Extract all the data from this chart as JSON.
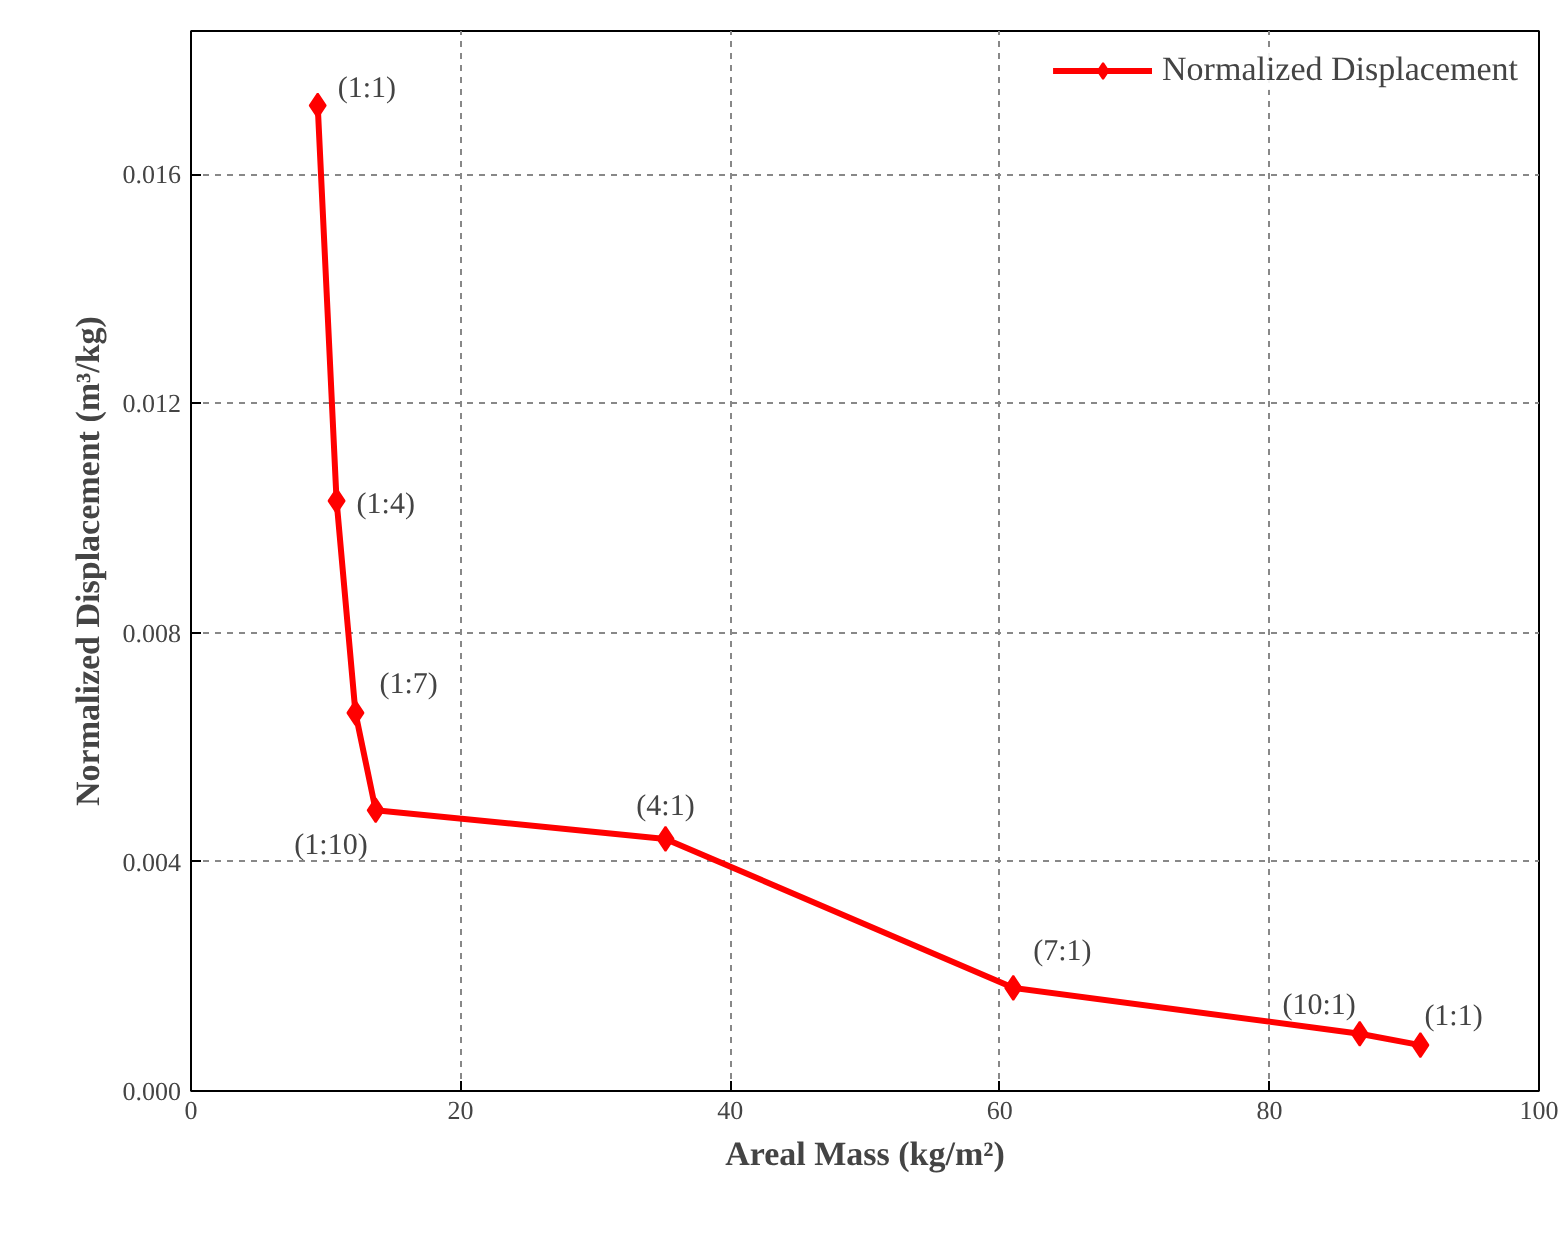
{
  "chart_data": {
    "type": "line",
    "xlabel": "Areal Mass (kg/m²)",
    "ylabel": "Normalized Displacement (m³/kg)",
    "x": [
      9.4,
      10.8,
      12.2,
      13.7,
      35.2,
      61.0,
      86.7,
      91.2
    ],
    "series": [
      {
        "name": "Normalized Displacement",
        "color": "#ff0000",
        "values": [
          0.0172,
          0.0103,
          0.0066,
          0.0049,
          0.0044,
          0.0018,
          0.001,
          0.0008
        ]
      }
    ],
    "annotations": [
      {
        "text": "(1:1)",
        "x": 9.4,
        "y": 0.0172
      },
      {
        "text": "(1:4)",
        "x": 10.8,
        "y": 0.0103
      },
      {
        "text": "(1:7)",
        "x": 12.2,
        "y": 0.0066
      },
      {
        "text": "(1:10)",
        "x": 13.7,
        "y": 0.0049
      },
      {
        "text": "(4:1)",
        "x": 35.2,
        "y": 0.0044
      },
      {
        "text": "(7:1)",
        "x": 61.0,
        "y": 0.0018
      },
      {
        "text": "(10:1)",
        "x": 86.7,
        "y": 0.001
      },
      {
        "text": "(1:1)",
        "x": 91.2,
        "y": 0.0008
      }
    ],
    "xlim": [
      0,
      100
    ],
    "xticks": [
      0,
      20,
      40,
      60,
      80,
      100
    ],
    "ylim": [
      0,
      0.0185
    ],
    "yticks": [
      {
        "value": 0,
        "label": "0.000"
      },
      {
        "value": 0.004,
        "label": "0.004"
      },
      {
        "value": 0.008,
        "label": "0.008"
      },
      {
        "value": 0.012,
        "label": "0.012"
      },
      {
        "value": 0.016,
        "label": "0.016"
      }
    ],
    "grid": true,
    "legend": "top right",
    "marker": "diamond",
    "line_style": "solid"
  }
}
